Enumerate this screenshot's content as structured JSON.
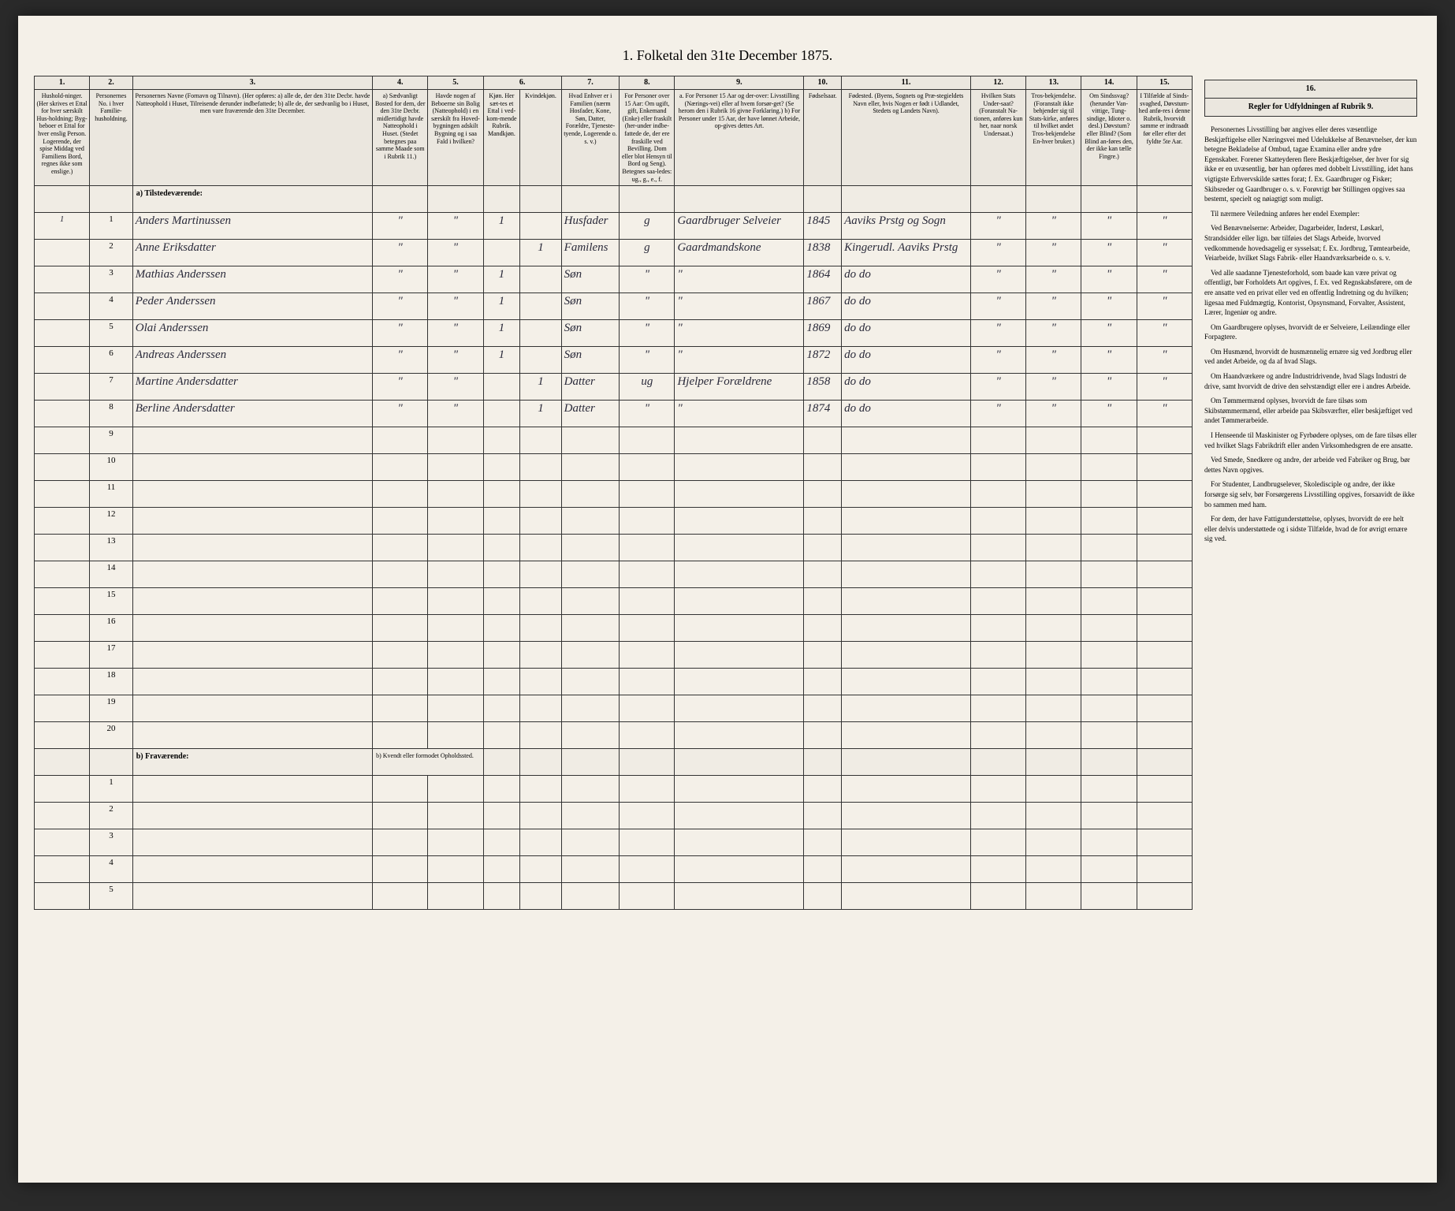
{
  "title": "1. Folketal den 31te December 1875.",
  "columns": {
    "nums": [
      "1.",
      "2.",
      "3.",
      "4.",
      "5.",
      "6.",
      "7.",
      "8.",
      "9.",
      "10.",
      "11.",
      "12.",
      "13.",
      "14.",
      "15.",
      "16."
    ],
    "headers": {
      "c1": "Hushold-ninger. (Her skrives et Ettal for hver særskilt Hus-holdning; Byg-beboer et Ettal for hver enslig Person. Logerende, der spise Middag ved Familiens Bord, regnes ikke som enslige.)",
      "c2": "Personernes No. i hver Familie-husholdning.",
      "c3": "Personernes Navne (Fornavn og Tilnavn). (Her opføres: a) alle de, der den 31te Decbr. havde Natteophold i Huset, Tilreisende derunder indbefattede; b) alle de, der sædvanlig bo i Huset, men vare fraværende den 31te December.",
      "c4": "a) Sædvanligt Bosted for dem, der den 31te Decbr. midlertidigt havde Natteophold i Huset. (Stedet betegnes paa samme Maade som i Rubrik 11.)",
      "c5": "Havde nogen af Beboerne sin Bolig (Natteophold) i en særskilt fra Hoved-bygningen adskilt Bygning og i saa Fald i hvilken?",
      "c6a": "Kjøn. Her sæt-tes et Ettal i ved-kom-mende Rubrik. Mandkjøn.",
      "c6b": "Kvindekjøn.",
      "c7": "Hvad Enhver er i Familien (nærm Hosfader, Kone, Søn, Datter, Forældre, Tjeneste-tyende, Logerende o. s. v.)",
      "c8": "For Personer over 15 Aar: Om ugift, gift, Enkemand (Enke) eller fraskilt (her-under indbe-fattede de, der ere fraskille ved Bevilling. Dom eller blot Hensyn til Bord og Seng). Betegnes saa-ledes: ug., g., e., f.",
      "c9": "a. For Personer 15 Aar og der-over: Livsstilling (Nærings-vei) eller af hvem forsør-get? (Se herom den i Rubrik 16 givne Forklaring.) b) For Personer under 15 Aar, der have lønnet Arbeide, op-gives dettes Art.",
      "c10": "Fødselsaar.",
      "c11": "Fødested. (Byens, Sognets og Præ-stegieldets Navn eller, hvis Nogen er født i Udlandet, Stedets og Landets Navn).",
      "c12": "Hvilken Stats Under-saat? (Foranstalt Na-tionen, anføres kun her, naar norsk Undersaat.)",
      "c13": "Tros-bekjendelse. (Foranstalt ikke behjender sig til Stats-kirke, anføres til hvilket andet Tros-bekjendelse En-hver bruker.)",
      "c14": "Om Sindssvag? (herunder Van-vittige, Tung-sindige, Idioter o. desl.) Døvstum? eller Blind? (Som Blind an-føres den, der ikke kan tælle Fingre.)",
      "c15": "I Tilfælde af Sinds-svaghed, Døvstum-hed anfø-res i denne Rubrik, hvorvidt samme er indtraadt før eller efter det fyldte 5te Aar.",
      "c16": "Regler for Udfyldningen af Rubrik 9."
    }
  },
  "sections": {
    "present": "a) Tilstedeværende:",
    "absent": "b) Fraværende:",
    "absent_note": "b) Kvendt eller formodet Opholdssted."
  },
  "rows": [
    {
      "n": "1",
      "hh": "1",
      "name": "Anders Martinussen",
      "c4": "\"",
      "c5": "\"",
      "male": "1",
      "female": "",
      "rel": "Husfader",
      "civ": "g",
      "occ": "Gaardbruger Selveier",
      "year": "1845",
      "place": "Aaviks Prstg og Sogn",
      "c12": "\"",
      "c13": "\"",
      "c14": "\"",
      "c15": "\""
    },
    {
      "n": "2",
      "hh": "",
      "name": "Anne Eriksdatter",
      "c4": "\"",
      "c5": "\"",
      "male": "",
      "female": "1",
      "rel": "Familens",
      "civ": "g",
      "occ": "Gaardmandskone",
      "year": "1838",
      "place": "Kingerudl. Aaviks Prstg",
      "c12": "\"",
      "c13": "\"",
      "c14": "\"",
      "c15": "\""
    },
    {
      "n": "3",
      "hh": "",
      "name": "Mathias Anderssen",
      "c4": "\"",
      "c5": "\"",
      "male": "1",
      "female": "",
      "rel": "Søn",
      "civ": "\"",
      "occ": "\"",
      "year": "1864",
      "place": "do  do",
      "c12": "\"",
      "c13": "\"",
      "c14": "\"",
      "c15": "\""
    },
    {
      "n": "4",
      "hh": "",
      "name": "Peder Anderssen",
      "c4": "\"",
      "c5": "\"",
      "male": "1",
      "female": "",
      "rel": "Søn",
      "civ": "\"",
      "occ": "\"",
      "year": "1867",
      "place": "do  do",
      "c12": "\"",
      "c13": "\"",
      "c14": "\"",
      "c15": "\""
    },
    {
      "n": "5",
      "hh": "",
      "name": "Olai Anderssen",
      "c4": "\"",
      "c5": "\"",
      "male": "1",
      "female": "",
      "rel": "Søn",
      "civ": "\"",
      "occ": "\"",
      "year": "1869",
      "place": "do  do",
      "c12": "\"",
      "c13": "\"",
      "c14": "\"",
      "c15": "\""
    },
    {
      "n": "6",
      "hh": "",
      "name": "Andreas Anderssen",
      "c4": "\"",
      "c5": "\"",
      "male": "1",
      "female": "",
      "rel": "Søn",
      "civ": "\"",
      "occ": "\"",
      "year": "1872",
      "place": "do  do",
      "c12": "\"",
      "c13": "\"",
      "c14": "\"",
      "c15": "\""
    },
    {
      "n": "7",
      "hh": "",
      "name": "Martine Andersdatter",
      "c4": "\"",
      "c5": "\"",
      "male": "",
      "female": "1",
      "rel": "Datter",
      "civ": "ug",
      "occ": "Hjelper Forældrene",
      "year": "1858",
      "place": "do  do",
      "c12": "\"",
      "c13": "\"",
      "c14": "\"",
      "c15": "\""
    },
    {
      "n": "8",
      "hh": "",
      "name": "Berline Andersdatter",
      "c4": "\"",
      "c5": "\"",
      "male": "",
      "female": "1",
      "rel": "Datter",
      "civ": "\"",
      "occ": "\"",
      "year": "1874",
      "place": "do  do",
      "c12": "\"",
      "c13": "\"",
      "c14": "\"",
      "c15": "\""
    }
  ],
  "empty_present": [
    "9",
    "10",
    "11",
    "12",
    "13",
    "14",
    "15",
    "16",
    "17",
    "18",
    "19",
    "20"
  ],
  "empty_absent": [
    "1",
    "2",
    "3",
    "4",
    "5"
  ],
  "sidebar": {
    "title": "Regler for Udfyldningen af Rubrik 9.",
    "paras": [
      "Personernes Livsstilling bør angives eller deres væsentlige Beskjæftigelse eller Næringsvei med Udelukkelse af Benævnelser, der kun betegne Bekladelse af Ombud, tagae Examina eller andre ydre Egenskaber. Forener Skatteyderen flere Beskjæftigelser, der hver for sig ikke er en uvæsentlig, bør han opføres med dobbelt Livsstilling, idet hans vigtigste Erhvervskilde sættes forat; f. Ex. Gaardbruger og Fisker; Skibsreder og Gaardbruger o. s. v. Forøvrigt bør Stillingen opgives saa bestemt, specielt og nøiagtigt som muligt.",
      "Til nærmere Veiledning anføres her endel Exempler:",
      "Ved Benævnelserne: Arbeider, Dagarbeider, Inderst, Løskarl, Strandsidder eller lign. bør tilføies det Slags Arbeide, hvorved vedkommende hovedsagelig er sysselsat; f. Ex. Jordbrug, Tømtearbeide, Veiarbeide, hvilket Slags Fabrik- eller Haandværksarbeide o. s. v.",
      "Ved alle saadanne Tjenesteforhold, som baade kan være privat og offentligt, bør Forholdets Art opgives, f. Ex. ved Regnskabsførere, om de ere ansatte ved en privat eller ved en offentlig Indretning og du hvilken; ligesaa med Fuldmægtig, Kontorist, Opsynsmand, Forvalter, Assistent, Lærer, Ingeniør og andre.",
      "Om Gaardbrugere oplyses, hvorvidt de er Selveiere, Leilændinge eller Forpagtere.",
      "Om Husmænd, hvorvidt de husmænnelig ernære sig ved Jordbrug eller ved andet Arbeide, og da af hvad Slags.",
      "Om Haandværkere og andre Industridrivende, hvad Slags Industri de drive, samt hvorvidt de drive den selvstændigt eller ere i andres Arbeide.",
      "Om Tømmermænd oplyses, hvorvidt de fare tilsøs som Skibstømmermænd, eller arbeide paa Skibsværfter, eller beskjæftiget ved andet Tømmerarbeide.",
      "I Henseende til Maskinister og Fyrbødere oplyses, om de fare tilsøs eller ved hvilket Slags Fabrikdrift eller anden Virksomhedsgren de ere ansatte.",
      "Ved Smede, Snedkere og andre, der arbeide ved Fabriker og Brug, bør dettes Navn opgives.",
      "For Studenter, Landbrugselever, Skoledisciple og andre, der ikke forsørge sig selv, bør Forsørgerens Livsstilling opgives, forsaavidt de ikke bo sammen med ham.",
      "For dem, der have Fattigunderstøttelse, oplyses, hvorvidt de ere helt eller delvis understøttede og i sidste Tilfælde, hvad de for øvrigt ernære sig ved."
    ]
  }
}
